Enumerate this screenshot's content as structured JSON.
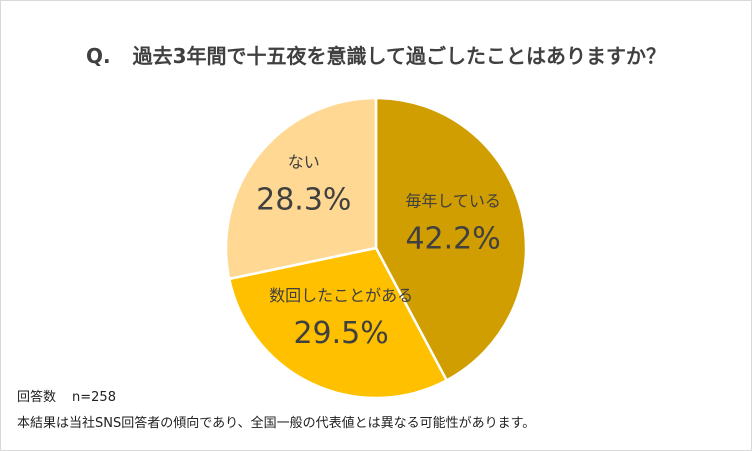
{
  "title": {
    "prefix": "Q.",
    "text": "過去3年間で十五夜を意識して過ごしたことはありますか？"
  },
  "chart_data": {
    "type": "pie",
    "slices": [
      {
        "label": "毎年している",
        "value": 42.2,
        "value_label": "42.2%",
        "color": "#D09E00"
      },
      {
        "label": "数回したことがある",
        "value": 29.5,
        "value_label": "29.5%",
        "color": "#FFC000"
      },
      {
        "label": "ない",
        "value": 28.3,
        "value_label": "28.3%",
        "color": "#FFD994"
      }
    ],
    "start": "12 o'clock",
    "direction": "clockwise",
    "legend": "none"
  },
  "footer": {
    "respondents_label": "回答数",
    "respondents_value": "n=258",
    "note": "本結果は当社SNS回答者の傾向であり、全国一般の代表値とは異なる可能性があります。"
  }
}
